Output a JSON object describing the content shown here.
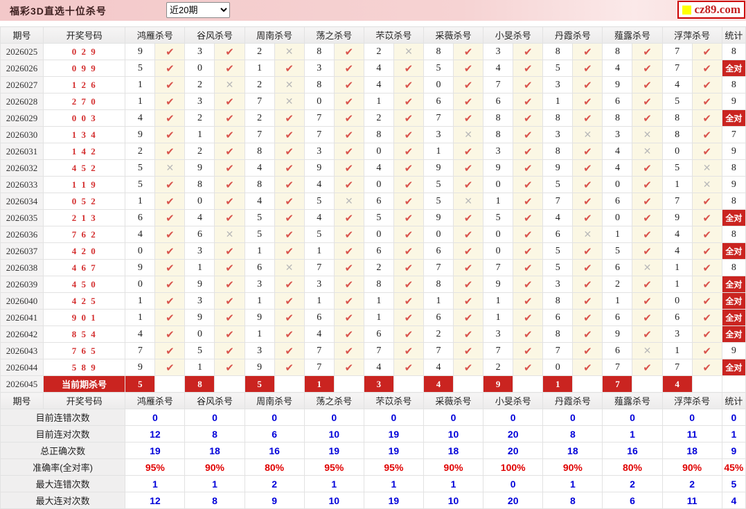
{
  "topbar": {
    "title": "福彩3D直选十位杀号",
    "range_value": "近20期",
    "logo_text": "cz89.com"
  },
  "icons": {
    "check": "✔",
    "cross": "✕",
    "logo_square": "yellow-square-icon",
    "select_arrow": "chevron-down-icon"
  },
  "colors": {
    "accent_red": "#ca2420",
    "drawn_number_red": "#d43030",
    "check_red": "#d9544d",
    "cross_gray": "#b9b9b9",
    "stat_blue": "#0000d9",
    "rate_red": "#e00000",
    "topbar_pink": "#f3c8c9",
    "mark_cell_cream": "#fbf7e4",
    "logo_yellow": "#ffff00"
  },
  "table": {
    "period_header": "期号",
    "drawn_header": "开奖号码",
    "stat_header": "统计",
    "all_correct_label": "全对",
    "experts": [
      "鸿雁杀号",
      "谷风杀号",
      "周南杀号",
      "荡之杀号",
      "芣苡杀号",
      "采薇杀号",
      "小旻杀号",
      "丹霞杀号",
      "薤露杀号",
      "浮萍杀号"
    ],
    "rows": [
      {
        "period": "2026025",
        "drawn": "029",
        "kills": [
          9,
          3,
          2,
          8,
          2,
          8,
          3,
          8,
          8,
          7
        ],
        "marks": [
          1,
          1,
          0,
          1,
          0,
          1,
          1,
          1,
          1,
          1
        ],
        "stat": "8"
      },
      {
        "period": "2026026",
        "drawn": "099",
        "kills": [
          5,
          0,
          1,
          3,
          4,
          5,
          4,
          5,
          4,
          7
        ],
        "marks": [
          1,
          1,
          1,
          1,
          1,
          1,
          1,
          1,
          1,
          1
        ],
        "stat": "全对"
      },
      {
        "period": "2026027",
        "drawn": "126",
        "kills": [
          1,
          2,
          2,
          8,
          4,
          0,
          7,
          3,
          9,
          4
        ],
        "marks": [
          1,
          0,
          0,
          1,
          1,
          1,
          1,
          1,
          1,
          1
        ],
        "stat": "8"
      },
      {
        "period": "2026028",
        "drawn": "270",
        "kills": [
          1,
          3,
          7,
          0,
          1,
          6,
          6,
          1,
          6,
          5
        ],
        "marks": [
          1,
          1,
          0,
          1,
          1,
          1,
          1,
          1,
          1,
          1
        ],
        "stat": "9"
      },
      {
        "period": "2026029",
        "drawn": "003",
        "kills": [
          4,
          2,
          2,
          7,
          2,
          7,
          8,
          8,
          8,
          8
        ],
        "marks": [
          1,
          1,
          1,
          1,
          1,
          1,
          1,
          1,
          1,
          1
        ],
        "stat": "全对"
      },
      {
        "period": "2026030",
        "drawn": "134",
        "kills": [
          9,
          1,
          7,
          7,
          8,
          3,
          8,
          3,
          3,
          8
        ],
        "marks": [
          1,
          1,
          1,
          1,
          1,
          0,
          1,
          0,
          0,
          1
        ],
        "stat": "7"
      },
      {
        "period": "2026031",
        "drawn": "142",
        "kills": [
          2,
          2,
          8,
          3,
          0,
          1,
          3,
          8,
          4,
          0
        ],
        "marks": [
          1,
          1,
          1,
          1,
          1,
          1,
          1,
          1,
          0,
          1
        ],
        "stat": "9"
      },
      {
        "period": "2026032",
        "drawn": "452",
        "kills": [
          5,
          9,
          4,
          9,
          4,
          9,
          9,
          9,
          4,
          5
        ],
        "marks": [
          0,
          1,
          1,
          1,
          1,
          1,
          1,
          1,
          1,
          0
        ],
        "stat": "8"
      },
      {
        "period": "2026033",
        "drawn": "119",
        "kills": [
          5,
          8,
          8,
          4,
          0,
          5,
          0,
          5,
          0,
          1
        ],
        "marks": [
          1,
          1,
          1,
          1,
          1,
          1,
          1,
          1,
          1,
          0
        ],
        "stat": "9"
      },
      {
        "period": "2026034",
        "drawn": "052",
        "kills": [
          1,
          0,
          4,
          5,
          6,
          5,
          1,
          7,
          6,
          7
        ],
        "marks": [
          1,
          1,
          1,
          0,
          1,
          0,
          1,
          1,
          1,
          1
        ],
        "stat": "8"
      },
      {
        "period": "2026035",
        "drawn": "213",
        "kills": [
          6,
          4,
          5,
          4,
          5,
          9,
          5,
          4,
          0,
          9
        ],
        "marks": [
          1,
          1,
          1,
          1,
          1,
          1,
          1,
          1,
          1,
          1
        ],
        "stat": "全对"
      },
      {
        "period": "2026036",
        "drawn": "762",
        "kills": [
          4,
          6,
          5,
          5,
          0,
          0,
          0,
          6,
          1,
          4
        ],
        "marks": [
          1,
          0,
          1,
          1,
          1,
          1,
          1,
          0,
          1,
          1
        ],
        "stat": "8"
      },
      {
        "period": "2026037",
        "drawn": "420",
        "kills": [
          0,
          3,
          1,
          1,
          6,
          6,
          0,
          5,
          5,
          4
        ],
        "marks": [
          1,
          1,
          1,
          1,
          1,
          1,
          1,
          1,
          1,
          1
        ],
        "stat": "全对"
      },
      {
        "period": "2026038",
        "drawn": "467",
        "kills": [
          9,
          1,
          6,
          7,
          2,
          7,
          7,
          5,
          6,
          1
        ],
        "marks": [
          1,
          1,
          0,
          1,
          1,
          1,
          1,
          1,
          0,
          1
        ],
        "stat": "8"
      },
      {
        "period": "2026039",
        "drawn": "450",
        "kills": [
          0,
          9,
          3,
          3,
          8,
          8,
          9,
          3,
          2,
          1
        ],
        "marks": [
          1,
          1,
          1,
          1,
          1,
          1,
          1,
          1,
          1,
          1
        ],
        "stat": "全对"
      },
      {
        "period": "2026040",
        "drawn": "425",
        "kills": [
          1,
          3,
          1,
          1,
          1,
          1,
          1,
          8,
          1,
          0
        ],
        "marks": [
          1,
          1,
          1,
          1,
          1,
          1,
          1,
          1,
          1,
          1
        ],
        "stat": "全对"
      },
      {
        "period": "2026041",
        "drawn": "901",
        "kills": [
          1,
          9,
          9,
          6,
          1,
          6,
          1,
          6,
          6,
          6
        ],
        "marks": [
          1,
          1,
          1,
          1,
          1,
          1,
          1,
          1,
          1,
          1
        ],
        "stat": "全对"
      },
      {
        "period": "2026042",
        "drawn": "854",
        "kills": [
          4,
          0,
          1,
          4,
          6,
          2,
          3,
          8,
          9,
          3
        ],
        "marks": [
          1,
          1,
          1,
          1,
          1,
          1,
          1,
          1,
          1,
          1
        ],
        "stat": "全对"
      },
      {
        "period": "2026043",
        "drawn": "765",
        "kills": [
          7,
          5,
          3,
          7,
          7,
          7,
          7,
          7,
          6,
          1
        ],
        "marks": [
          1,
          1,
          1,
          1,
          1,
          1,
          1,
          1,
          0,
          1
        ],
        "stat": "9"
      },
      {
        "period": "2026044",
        "drawn": "589",
        "kills": [
          9,
          1,
          9,
          7,
          4,
          4,
          2,
          0,
          7,
          7
        ],
        "marks": [
          1,
          1,
          1,
          1,
          1,
          1,
          1,
          1,
          1,
          1
        ],
        "stat": "全对"
      }
    ],
    "current_row": {
      "period": "2026045",
      "label": "当前期杀号",
      "kills": [
        5,
        8,
        5,
        1,
        3,
        4,
        9,
        1,
        7,
        4
      ],
      "stat": ""
    },
    "footer_rows": [
      {
        "label": "目前连错次数",
        "values": [
          "0",
          "0",
          "0",
          "0",
          "0",
          "0",
          "0",
          "0",
          "0",
          "0"
        ],
        "stat": "0",
        "color": "blue"
      },
      {
        "label": "目前连对次数",
        "values": [
          "12",
          "8",
          "6",
          "10",
          "19",
          "10",
          "20",
          "8",
          "1",
          "11"
        ],
        "stat": "1",
        "color": "blue"
      },
      {
        "label": "总正确次数",
        "values": [
          "19",
          "18",
          "16",
          "19",
          "19",
          "18",
          "20",
          "18",
          "16",
          "18"
        ],
        "stat": "9",
        "color": "blue"
      },
      {
        "label": "准确率(全对率)",
        "values": [
          "95%",
          "90%",
          "80%",
          "95%",
          "95%",
          "90%",
          "100%",
          "90%",
          "80%",
          "90%"
        ],
        "stat": "45%",
        "color": "red"
      },
      {
        "label": "最大连错次数",
        "values": [
          "1",
          "1",
          "2",
          "1",
          "1",
          "1",
          "0",
          "1",
          "2",
          "2"
        ],
        "stat": "5",
        "color": "blue"
      },
      {
        "label": "最大连对次数",
        "values": [
          "12",
          "8",
          "9",
          "10",
          "19",
          "10",
          "20",
          "8",
          "6",
          "11"
        ],
        "stat": "4",
        "color": "blue"
      }
    ]
  }
}
